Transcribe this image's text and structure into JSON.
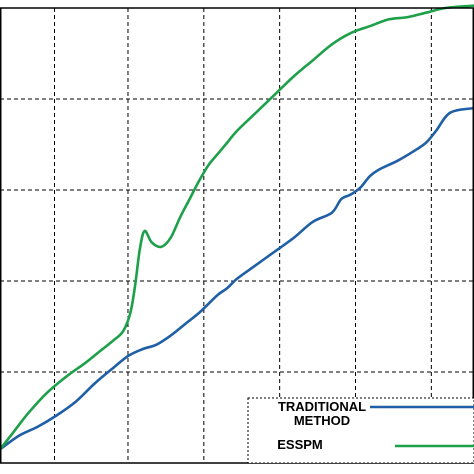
{
  "chart_data": {
    "type": "line",
    "title": "",
    "xlabel": "",
    "ylabel": "",
    "xlim": [
      0,
      100
    ],
    "ylim": [
      0,
      100
    ],
    "grid": true,
    "grid_style": "dashed",
    "legend_position": "bottom-right",
    "series": [
      {
        "name": "TRADITIONAL METHOD",
        "color": "#1f5fa6",
        "x": [
          0,
          4,
          8,
          12,
          16,
          20,
          24,
          27,
          30,
          33,
          36,
          39,
          42,
          44,
          46,
          48,
          50,
          54,
          58,
          62,
          66,
          70,
          72,
          74,
          76,
          78,
          80,
          84,
          88,
          90,
          92,
          95,
          100
        ],
        "y": [
          3,
          6,
          8,
          10.5,
          13.5,
          17.5,
          21,
          23.5,
          25,
          26,
          28,
          30.5,
          33,
          35,
          37,
          38.5,
          40.5,
          43.5,
          46.5,
          49.5,
          53,
          55,
          58,
          59,
          60.5,
          63,
          64.5,
          66.5,
          69,
          70.5,
          73,
          77,
          78
        ]
      },
      {
        "name": "ESSPM",
        "color": "#1ea04a",
        "x": [
          0,
          3,
          6,
          10,
          14,
          18,
          21,
          24,
          26,
          27.5,
          28.5,
          29.5,
          30.5,
          32,
          34,
          36,
          38,
          40,
          42,
          44,
          46,
          48,
          50,
          54,
          58,
          62,
          66,
          70,
          74,
          78,
          82,
          86,
          90,
          94,
          100
        ],
        "y": [
          3,
          7,
          11,
          15.5,
          19,
          22,
          24.5,
          27,
          29,
          33,
          39,
          47,
          51,
          48.5,
          47.5,
          49.5,
          54,
          58,
          62,
          65.5,
          68,
          70.5,
          73,
          77,
          81,
          85,
          88.5,
          92,
          94.5,
          96,
          97.5,
          98,
          99,
          100,
          100.5
        ]
      }
    ]
  }
}
